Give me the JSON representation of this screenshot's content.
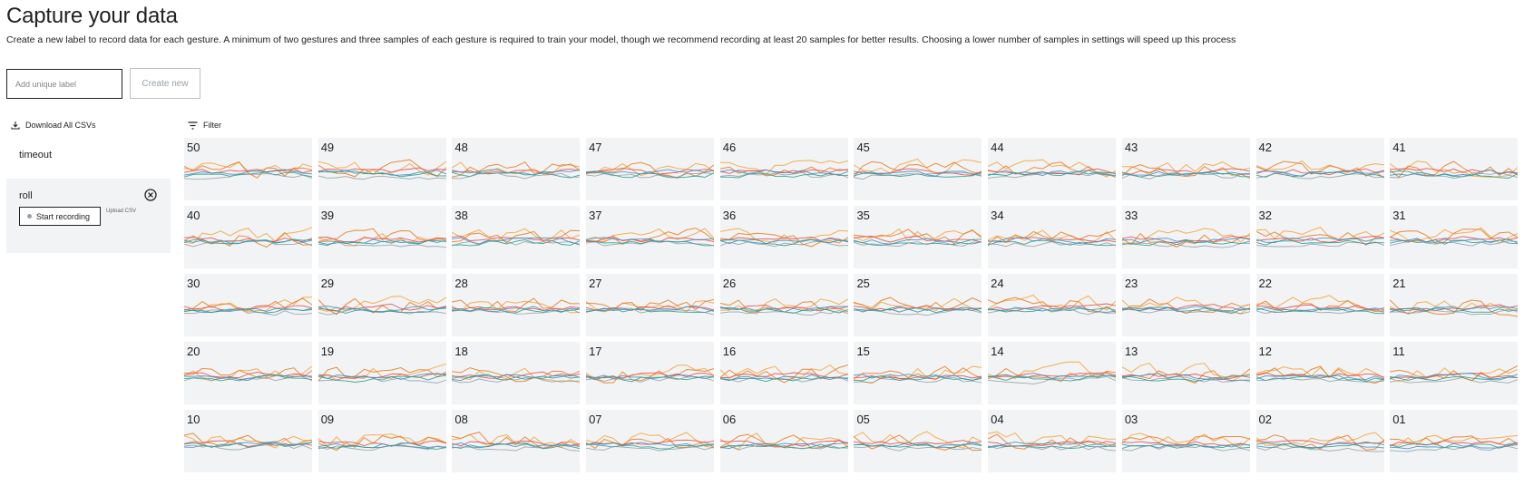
{
  "header": {
    "title": "Capture your data",
    "description": "Create a new label to record data for each gesture. A minimum of two gestures and three samples of each gesture is required to train your model, though we recommend recording at least 20 samples for better results. Choosing a lower number of samples in settings will speed up this process"
  },
  "new_label": {
    "placeholder": "Add unique label",
    "value": "",
    "create_label": "Create new"
  },
  "sidebar": {
    "download_label": "Download All CSVs",
    "gestures": [
      {
        "name": "timeout"
      },
      {
        "name": "roll",
        "start_label": "Start recording",
        "upload_label": "Upload CSV"
      }
    ]
  },
  "filter_label": "Filter",
  "samples": [
    "50",
    "49",
    "48",
    "47",
    "46",
    "45",
    "44",
    "43",
    "42",
    "41",
    "40",
    "39",
    "38",
    "37",
    "36",
    "35",
    "34",
    "33",
    "32",
    "31",
    "30",
    "29",
    "28",
    "27",
    "26",
    "25",
    "24",
    "23",
    "22",
    "21",
    "20",
    "19",
    "18",
    "17",
    "16",
    "15",
    "14",
    "13",
    "12",
    "11",
    "10",
    "09",
    "08",
    "07",
    "06",
    "05",
    "04",
    "03",
    "02",
    "01"
  ],
  "series_colors": [
    "#f4a742",
    "#e8812a",
    "#e5484d",
    "#3d8fc4",
    "#2a9d8f",
    "#7b8c99"
  ]
}
